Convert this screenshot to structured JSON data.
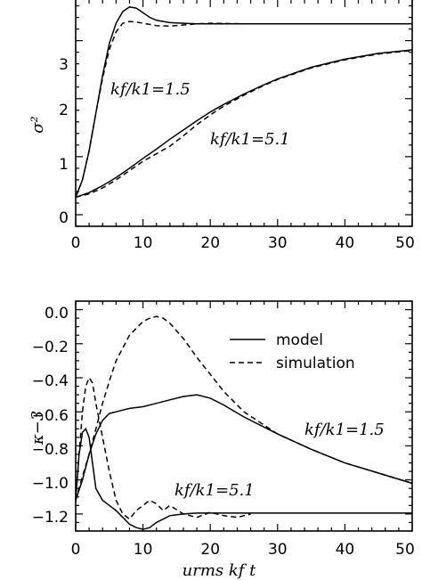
{
  "chart_data": [
    {
      "type": "line",
      "ylabel": "σ²",
      "xlabel": "",
      "xlim": [
        0,
        50
      ],
      "ylim": [
        -0.2,
        3.7
      ],
      "xticks": [
        "0",
        "10",
        "20",
        "30",
        "40",
        "50"
      ],
      "yticks": [
        "0",
        "1",
        "2",
        "3"
      ],
      "annotations": [
        {
          "text": "kf/k1=1.5",
          "x": 5.5,
          "y": 2.45
        },
        {
          "text": "kf/k1=5.1",
          "x": 20.5,
          "y": 1.45
        }
      ],
      "series": [
        {
          "curve": "model kf/k1=1.5",
          "style": "solid",
          "x": [
            0,
            1,
            2,
            3,
            4,
            5,
            6,
            7,
            8,
            9,
            10,
            11,
            12,
            14,
            16,
            18,
            20,
            25,
            30,
            40,
            50
          ],
          "y": [
            0.3,
            0.6,
            1.1,
            1.75,
            2.4,
            2.95,
            3.3,
            3.5,
            3.58,
            3.56,
            3.48,
            3.4,
            3.35,
            3.31,
            3.3,
            3.29,
            3.29,
            3.29,
            3.29,
            3.29,
            3.29
          ]
        },
        {
          "curve": "simulation kf/k1=1.5",
          "style": "dashed",
          "x": [
            0,
            1,
            2,
            3,
            4,
            5,
            6,
            7,
            8,
            9,
            10,
            12,
            14,
            16,
            18,
            20,
            25,
            30,
            40,
            50
          ],
          "y": [
            0.3,
            0.6,
            1.1,
            1.75,
            2.35,
            2.85,
            3.15,
            3.3,
            3.33,
            3.32,
            3.3,
            3.26,
            3.25,
            3.27,
            3.29,
            3.3,
            3.29,
            3.29,
            3.29,
            3.29
          ]
        },
        {
          "curve": "model kf/k1=5.1",
          "style": "solid",
          "x": [
            0,
            2,
            4,
            6,
            8,
            10,
            12,
            14,
            16,
            18,
            20,
            22,
            25,
            28,
            30,
            35,
            40,
            45,
            50
          ],
          "y": [
            0.3,
            0.38,
            0.5,
            0.64,
            0.8,
            0.97,
            1.13,
            1.3,
            1.46,
            1.62,
            1.77,
            1.9,
            2.08,
            2.24,
            2.34,
            2.54,
            2.68,
            2.78,
            2.84
          ]
        },
        {
          "curve": "simulation kf/k1=5.1",
          "style": "dashed",
          "x": [
            0,
            2,
            4,
            6,
            8,
            10,
            12,
            14,
            16,
            18,
            20,
            22,
            25,
            28,
            30,
            35,
            40,
            45,
            50
          ],
          "y": [
            0.3,
            0.36,
            0.46,
            0.6,
            0.76,
            0.92,
            1.05,
            1.18,
            1.36,
            1.55,
            1.72,
            1.87,
            2.06,
            2.23,
            2.33,
            2.53,
            2.67,
            2.77,
            2.83
          ]
        }
      ]
    },
    {
      "type": "line",
      "ylabel": "κ−3",
      "xlabel": "urms kf t",
      "xlim": [
        0,
        50
      ],
      "ylim": [
        -1.3,
        0.05
      ],
      "xticks": [
        "0",
        "10",
        "20",
        "30",
        "40",
        "50"
      ],
      "yticks": [
        "0.0",
        "−0.2",
        "−0.4",
        "−0.6",
        "−0.8",
        "−1.0",
        "−1.2"
      ],
      "legend": [
        {
          "label": "model",
          "style": "solid"
        },
        {
          "label": "simulation",
          "style": "dashed"
        }
      ],
      "annotations": [
        {
          "text": "kf/k1=1.5",
          "x": 34.5,
          "y": -0.8
        },
        {
          "text": "kf/k1=5.1",
          "x": 15,
          "y": -1.13
        }
      ],
      "series": [
        {
          "curve": "model kf/k1=1.5",
          "style": "solid",
          "x": [
            0,
            1,
            2,
            3,
            4,
            5,
            6,
            8,
            10,
            12,
            14,
            16,
            18,
            20,
            22,
            25,
            30,
            35,
            40,
            45,
            50
          ],
          "y": [
            -1.12,
            -1.0,
            -0.85,
            -0.73,
            -0.65,
            -0.61,
            -0.6,
            -0.58,
            -0.57,
            -0.55,
            -0.53,
            -0.51,
            -0.5,
            -0.52,
            -0.56,
            -0.63,
            -0.73,
            -0.82,
            -0.9,
            -0.96,
            -1.02
          ]
        },
        {
          "curve": "simulation kf/k1=1.5",
          "style": "dashed",
          "x": [
            0,
            1,
            2,
            3,
            4,
            5,
            6,
            8,
            10,
            11,
            12,
            13,
            14,
            16,
            18,
            20,
            22,
            25,
            30,
            35,
            40,
            45,
            50
          ],
          "y": [
            -1.12,
            -0.98,
            -0.85,
            -0.7,
            -0.55,
            -0.42,
            -0.3,
            -0.15,
            -0.07,
            -0.05,
            -0.04,
            -0.05,
            -0.08,
            -0.17,
            -0.28,
            -0.38,
            -0.48,
            -0.6,
            -0.73,
            -0.82,
            -0.9,
            -0.96,
            -1.02
          ]
        },
        {
          "curve": "model kf/k1=5.1",
          "style": "solid",
          "x": [
            0,
            0.5,
            1,
            1.5,
            2,
            2.5,
            3,
            4,
            5,
            6,
            7,
            8,
            9,
            10,
            11,
            12,
            14,
            16,
            18,
            20,
            25,
            30,
            40,
            50
          ],
          "y": [
            -1.12,
            -0.85,
            -0.72,
            -0.7,
            -0.75,
            -0.9,
            -1.05,
            -1.12,
            -1.15,
            -1.18,
            -1.22,
            -1.26,
            -1.28,
            -1.29,
            -1.28,
            -1.25,
            -1.21,
            -1.2,
            -1.195,
            -1.195,
            -1.195,
            -1.195,
            -1.195,
            -1.195
          ]
        },
        {
          "curve": "simulation kf/k1=5.1",
          "style": "dashed",
          "x": [
            0,
            0.5,
            1,
            1.5,
            2,
            2.5,
            3,
            4,
            5,
            6,
            7,
            8,
            9,
            10,
            11,
            12,
            13,
            14,
            16,
            18,
            20,
            22,
            24,
            26
          ],
          "y": [
            -1.12,
            -0.85,
            -0.6,
            -0.45,
            -0.4,
            -0.43,
            -0.55,
            -0.75,
            -0.95,
            -1.12,
            -1.2,
            -1.23,
            -1.18,
            -1.15,
            -1.12,
            -1.14,
            -1.18,
            -1.15,
            -1.2,
            -1.22,
            -1.19,
            -1.21,
            -1.22,
            -1.2
          ]
        }
      ]
    }
  ]
}
